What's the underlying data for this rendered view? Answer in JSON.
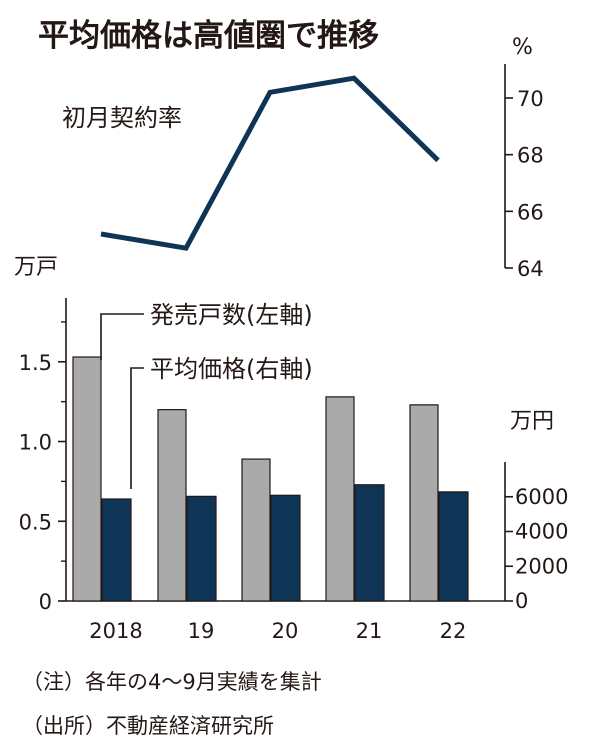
{
  "title": "平均価格は高値圏で推移",
  "notes": [
    "（注）各年の4～9月実績を集計",
    "（出所）不動産経済研究所"
  ],
  "colors": {
    "gray_bar": "#aaaaaa",
    "navy": "#0f3556",
    "ink": "#231815"
  },
  "chart_data": [
    {
      "type": "line",
      "series_label": "初月契約率",
      "unit": "%",
      "categories": [
        "2018",
        "19",
        "20",
        "21",
        "22"
      ],
      "values": [
        65.2,
        64.7,
        70.2,
        70.7,
        67.8
      ],
      "ylim": [
        64,
        71.2
      ],
      "yticks": [
        64,
        66,
        68,
        70
      ]
    },
    {
      "type": "bar",
      "categories": [
        "2018",
        "19",
        "20",
        "21",
        "22"
      ],
      "series": [
        {
          "name": "発売戸数(左軸)",
          "unit": "万戸",
          "axis": "left",
          "values": [
            1.53,
            1.2,
            0.89,
            1.28,
            1.23
          ],
          "ylim": [
            0,
            1.9
          ],
          "yticks": [
            "0",
            "0.5",
            "1.0",
            "1.5"
          ]
        },
        {
          "name": "平均価格(右軸)",
          "unit": "万円",
          "axis": "right",
          "values": [
            5871,
            6023,
            6084,
            6690,
            6281
          ],
          "ylim": [
            0,
            8000
          ],
          "yticks": [
            "0",
            "2000",
            "4000",
            "6000"
          ]
        }
      ]
    }
  ]
}
